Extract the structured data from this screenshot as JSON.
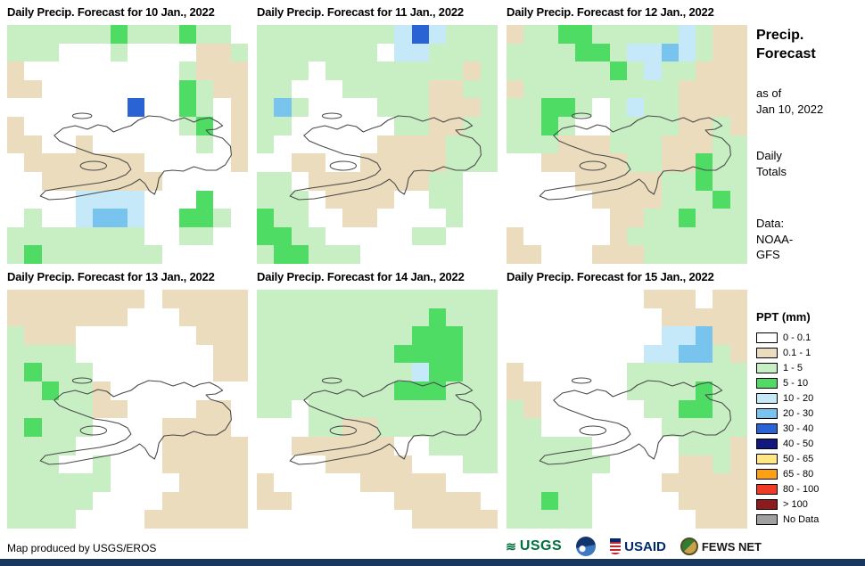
{
  "maps": [
    {
      "title": "Daily Precip. Forecast for 10 Jan., 2022",
      "grid": [
        "ggggggGgggGggw",
        "gggwwwgwwwwttg",
        "twwwwwwwwwgttt",
        "ttwwwwwwwwGgtt",
        "wwwwwwwbwwGgwt",
        "twwwwwwwwwgGwt",
        "ttwwtwwwwwwgwt",
        "wtttttttwwwwwt",
        "wwtttttttwwwww",
        "wwwwccccwwwGww",
        "wgwwcCCcwwGGgw",
        "ggggggggwwggww",
        "gGgggggggwwwww"
      ]
    },
    {
      "title": "Daily Precip. Forecast for 11 Jan., 2022",
      "grid": [
        "ggggggggcbcggg",
        "gggggggwccgggg",
        "gggwggggggggtg",
        "ggwwwgggggttgg",
        "gCgwwwwgggtttg",
        "ggwwwwwwggttgg",
        "gwwwwwwttttggg",
        "wwttwwtttttggg",
        "ggwtttttttggww",
        "gggwttttwwggww",
        "Gggwwttwwwwgww",
        "GGggwwwwwggwww",
        "gGGgggwwwwwwww"
      ]
    },
    {
      "title": "Daily Precip. Forecast for 12 Jan., 2022",
      "grid": [
        "tggGGgggggcgtt",
        "ggggGGgccCcgtt",
        "ggggggGgcggttt",
        "tgggggggggtttt",
        "ggGGgwgcggtttt",
        "ggGgwwggggttgt",
        "gggtttgggtttgg",
        "wwtttttggttGgg",
        "wwwwtttttggGgg",
        "wwwwwttttgggGg",
        "wwwwwwttggGggg",
        "twwwwwtggggggg",
        "ttwwwtttgggggg"
      ]
    },
    {
      "title": "Daily Precip. Forecast for 13 Jan., 2022",
      "grid": [
        "ttttttttwttttt",
        "tttttttwwwtttt",
        "gtttwwwwwwwttt",
        "ggggwwwwwwwwtt",
        "gGgggwwwwwwwtt",
        "ggGggtwwwwwwww",
        "gggggttwwwwttw",
        "gGgggwwwwttttw",
        "ggggwwwwwttttt",
        "gggwwgwwwttttt",
        "ggggggwwwwtttt",
        "gggggwwwwttttt",
        "ggggwwwwtttttt"
      ]
    },
    {
      "title": "Daily Precip. Forecast for 14 Jan., 2022",
      "grid": [
        "gggggggggggggg",
        "ggggggggggGggg",
        "gggggggggGGGgg",
        "ggggggggGGGGgg",
        "gggggggggcGGgg",
        "ggggggggGGGggg",
        "ggwggggggggggg",
        "wwwggttggggggg",
        "wwttttttwwgggg",
        "wwwwtttttwwwgg",
        "twwwwwtttttwww",
        "ttwwwwwwtttttw",
        "wwwwwwwwwttttt"
      ]
    },
    {
      "title": "Daily Precip. Forecast for 15 Jan., 2022",
      "grid": [
        "wwwwwwwwtttwtt",
        "wwwwwwwwwttttt",
        "wwwwwwwwwccCtt",
        "wwwwwwwwccCCgt",
        "twwwwwwggggggg",
        "ttwwwwwggggGgg",
        "gtwwwwwwggGGgg",
        "ggwwwwwwwggggg",
        "gggggwwwwwgggt",
        "ggggggwwwwttgt",
        "gggggwwwwttttt",
        "ggGggwwwwwtttt",
        "gggggwwwwwwttt"
      ]
    }
  ],
  "palette": {
    "w": "#FFFFFF",
    "t": "#EADCBD",
    "g": "#C8EFC3",
    "G": "#4FDC64",
    "c": "#C6E9FA",
    "C": "#79C3EF",
    "b": "#2A63D4"
  },
  "sidebar": {
    "title": "Precip.\nForecast",
    "as_of": "as of\nJan 10, 2022",
    "totals": "Daily\nTotals",
    "data_source": "Data:\nNOAA-\nGFS",
    "legend_title": "PPT (mm)",
    "legend": [
      {
        "label": "0 - 0.1",
        "color": "#FFFFFF"
      },
      {
        "label": "0.1 - 1",
        "color": "#EADCBD"
      },
      {
        "label": "1 - 5",
        "color": "#C8EFC3"
      },
      {
        "label": "5 - 10",
        "color": "#4FDC64"
      },
      {
        "label": "10 - 20",
        "color": "#C6E9FA"
      },
      {
        "label": "20 - 30",
        "color": "#79C3EF"
      },
      {
        "label": "30 - 40",
        "color": "#2A63D4"
      },
      {
        "label": "40 - 50",
        "color": "#10187F"
      },
      {
        "label": "50 - 65",
        "color": "#FFE884"
      },
      {
        "label": "65 - 80",
        "color": "#FFA013"
      },
      {
        "label": "80 - 100",
        "color": "#EF3B24"
      },
      {
        "label": "> 100",
        "color": "#8E1A1D"
      },
      {
        "label": "No Data",
        "color": "#A0A0A0"
      }
    ]
  },
  "footer": {
    "credit": "Map produced by USGS/EROS",
    "usgs_text": "USGS",
    "usaid_text": "USAID",
    "fewsnet_text": "FEWS NET",
    "icons": {
      "usgs_wave": "≋"
    }
  },
  "colors": {
    "bottom_bar": "#17375E"
  }
}
